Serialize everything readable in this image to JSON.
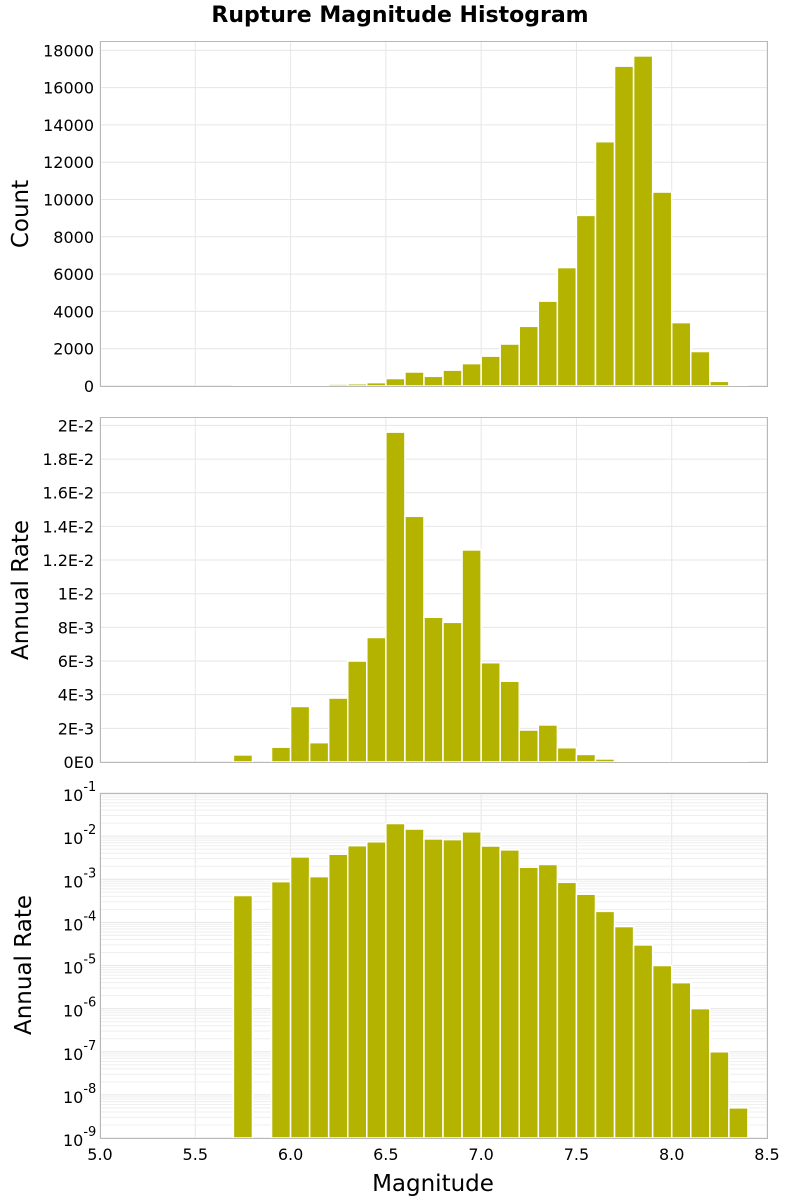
{
  "title": "Rupture Magnitude Histogram",
  "colors": {
    "bar": "#b4b400",
    "bar_edge": "#ffffff",
    "grid": "#e6e6e6",
    "frame": "#b8b8b8"
  },
  "chart_data": [
    {
      "type": "bar",
      "panel": "top",
      "ylabel": "Count",
      "xlabel": "",
      "xlim": [
        5.0,
        8.5
      ],
      "ylim": [
        0,
        18500
      ],
      "bin_width": 0.1,
      "yticks": [
        "0",
        "2000",
        "4000",
        "6000",
        "8000",
        "10000",
        "12000",
        "14000",
        "16000",
        "18000"
      ],
      "grid": true,
      "bin_centers": [
        5.75,
        5.85,
        5.95,
        6.05,
        6.15,
        6.25,
        6.35,
        6.45,
        6.55,
        6.65,
        6.75,
        6.85,
        6.95,
        7.05,
        7.15,
        7.25,
        7.35,
        7.45,
        7.55,
        7.65,
        7.75,
        7.85,
        7.95,
        8.05,
        8.15,
        8.25,
        8.35
      ],
      "values": [
        10,
        30,
        40,
        60,
        70,
        100,
        120,
        180,
        400,
        750,
        520,
        850,
        1200,
        1600,
        2250,
        3200,
        4550,
        6350,
        9150,
        13100,
        17150,
        17700,
        10400,
        3400,
        1850,
        250,
        30
      ]
    },
    {
      "type": "bar",
      "panel": "middle",
      "ylabel": "Annual Rate",
      "xlabel": "",
      "xlim": [
        5.0,
        8.5
      ],
      "ylim": [
        0,
        0.0205
      ],
      "bin_width": 0.1,
      "yticks": [
        "0E0",
        "2E-3",
        "4E-3",
        "6E-3",
        "8E-3",
        "1E-2",
        "1.2E-2",
        "1.4E-2",
        "1.6E-2",
        "1.8E-2",
        "2E-2"
      ],
      "grid": true,
      "bin_centers": [
        5.75,
        5.95,
        6.05,
        6.15,
        6.25,
        6.35,
        6.45,
        6.55,
        6.65,
        6.75,
        6.85,
        6.95,
        7.05,
        7.15,
        7.25,
        7.35,
        7.45,
        7.55,
        7.65,
        7.75,
        7.85,
        7.95,
        8.05,
        8.15,
        8.25,
        8.35
      ],
      "values": [
        0.00042,
        0.00088,
        0.0033,
        0.00115,
        0.0038,
        0.006,
        0.0074,
        0.0196,
        0.0146,
        0.0086,
        0.0083,
        0.0126,
        0.0059,
        0.0048,
        0.0019,
        0.0022,
        0.00085,
        0.00045,
        0.00018,
        8e-05,
        3e-05,
        1e-05,
        4e-06,
        1e-06,
        1e-07,
        5e-09
      ]
    },
    {
      "type": "bar",
      "panel": "bottom",
      "ylabel": "Annual Rate",
      "xlabel": "Magnitude",
      "xlim": [
        5.0,
        8.5
      ],
      "yscale": "log",
      "ylim": [
        1e-09,
        0.1
      ],
      "bin_width": 0.1,
      "xticks": [
        "5.0",
        "5.5",
        "6.0",
        "6.5",
        "7.0",
        "7.5",
        "8.0",
        "8.5"
      ],
      "ytick_base": "10",
      "ytick_exponents": [
        "-9",
        "-8",
        "-7",
        "-6",
        "-5",
        "-4",
        "-3",
        "-2",
        "-1"
      ],
      "grid": true,
      "bin_centers": [
        5.75,
        5.95,
        6.05,
        6.15,
        6.25,
        6.35,
        6.45,
        6.55,
        6.65,
        6.75,
        6.85,
        6.95,
        7.05,
        7.15,
        7.25,
        7.35,
        7.45,
        7.55,
        7.65,
        7.75,
        7.85,
        7.95,
        8.05,
        8.15,
        8.25,
        8.35
      ],
      "values": [
        0.00042,
        0.00088,
        0.0033,
        0.00115,
        0.0038,
        0.006,
        0.0074,
        0.0196,
        0.0146,
        0.0086,
        0.0083,
        0.0126,
        0.0059,
        0.0048,
        0.0019,
        0.0022,
        0.00085,
        0.00045,
        0.00018,
        8e-05,
        3e-05,
        1e-05,
        4e-06,
        1e-06,
        1e-07,
        5e-09
      ]
    }
  ]
}
